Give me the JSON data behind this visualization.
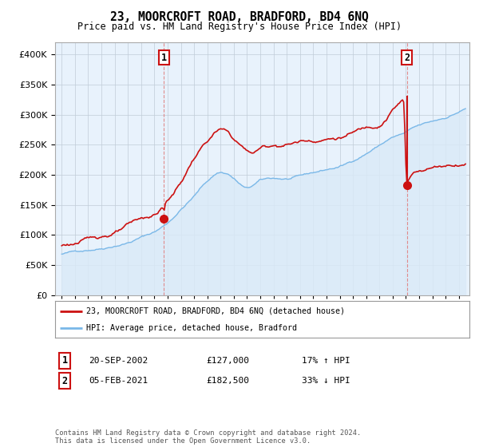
{
  "title": "23, MOORCROFT ROAD, BRADFORD, BD4 6NQ",
  "subtitle": "Price paid vs. HM Land Registry's House Price Index (HPI)",
  "sale1_date": "20-SEP-2002",
  "sale1_price": 127000,
  "sale1_label": "17% ↑ HPI",
  "sale1_num": "1",
  "sale2_date": "05-FEB-2021",
  "sale2_price": 182500,
  "sale2_label": "33% ↓ HPI",
  "sale2_num": "2",
  "legend_line1": "23, MOORCROFT ROAD, BRADFORD, BD4 6NQ (detached house)",
  "legend_line2": "HPI: Average price, detached house, Bradford",
  "footer": "Contains HM Land Registry data © Crown copyright and database right 2024.\nThis data is licensed under the Open Government Licence v3.0.",
  "hpi_color": "#7ab8e8",
  "hpi_fill_color": "#d0e8f8",
  "price_color": "#cc1111",
  "vline_color": "#cc1111",
  "background_color": "#ffffff",
  "ylim_min": 0,
  "ylim_max": 420000,
  "sale1_marker_price": 127000,
  "sale2_marker_price": 182500,
  "sale1_x_year": 2002.72,
  "sale2_x_year": 2021.09,
  "xlim_min": 1994.5,
  "xlim_max": 2025.8
}
